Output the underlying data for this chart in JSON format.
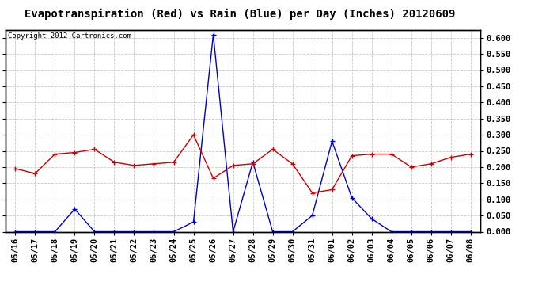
{
  "title": "Evapotranspiration (Red) vs Rain (Blue) per Day (Inches) 20120609",
  "copyright": "Copyright 2012 Cartronics.com",
  "dates": [
    "05/16",
    "05/17",
    "05/18",
    "05/19",
    "05/20",
    "05/21",
    "05/22",
    "05/23",
    "05/24",
    "05/25",
    "05/26",
    "05/27",
    "05/28",
    "05/29",
    "05/30",
    "05/31",
    "06/01",
    "06/02",
    "06/03",
    "06/04",
    "06/05",
    "06/06",
    "06/07",
    "06/08"
  ],
  "et_red": [
    0.195,
    0.18,
    0.24,
    0.245,
    0.255,
    0.215,
    0.205,
    0.21,
    0.215,
    0.3,
    0.165,
    0.205,
    0.21,
    0.255,
    0.21,
    0.12,
    0.13,
    0.235,
    0.24,
    0.24,
    0.2,
    0.21,
    0.23,
    0.24
  ],
  "rain_blue": [
    0.0,
    0.0,
    0.0,
    0.07,
    0.0,
    0.0,
    0.0,
    0.0,
    0.0,
    0.03,
    0.61,
    0.0,
    0.215,
    0.0,
    0.0,
    0.05,
    0.28,
    0.105,
    0.04,
    0.0,
    0.0,
    0.0,
    0.0,
    0.0
  ],
  "ylim": [
    0.0,
    0.625
  ],
  "yticks": [
    0.0,
    0.05,
    0.1,
    0.15,
    0.2,
    0.25,
    0.3,
    0.35,
    0.4,
    0.45,
    0.5,
    0.55,
    0.6
  ],
  "et_color": "#cc0000",
  "rain_color": "#0000cc",
  "bg_color": "#ffffff",
  "grid_color": "#bbbbbb",
  "title_fontsize": 10,
  "copyright_fontsize": 6.5,
  "tick_fontsize": 7.5
}
